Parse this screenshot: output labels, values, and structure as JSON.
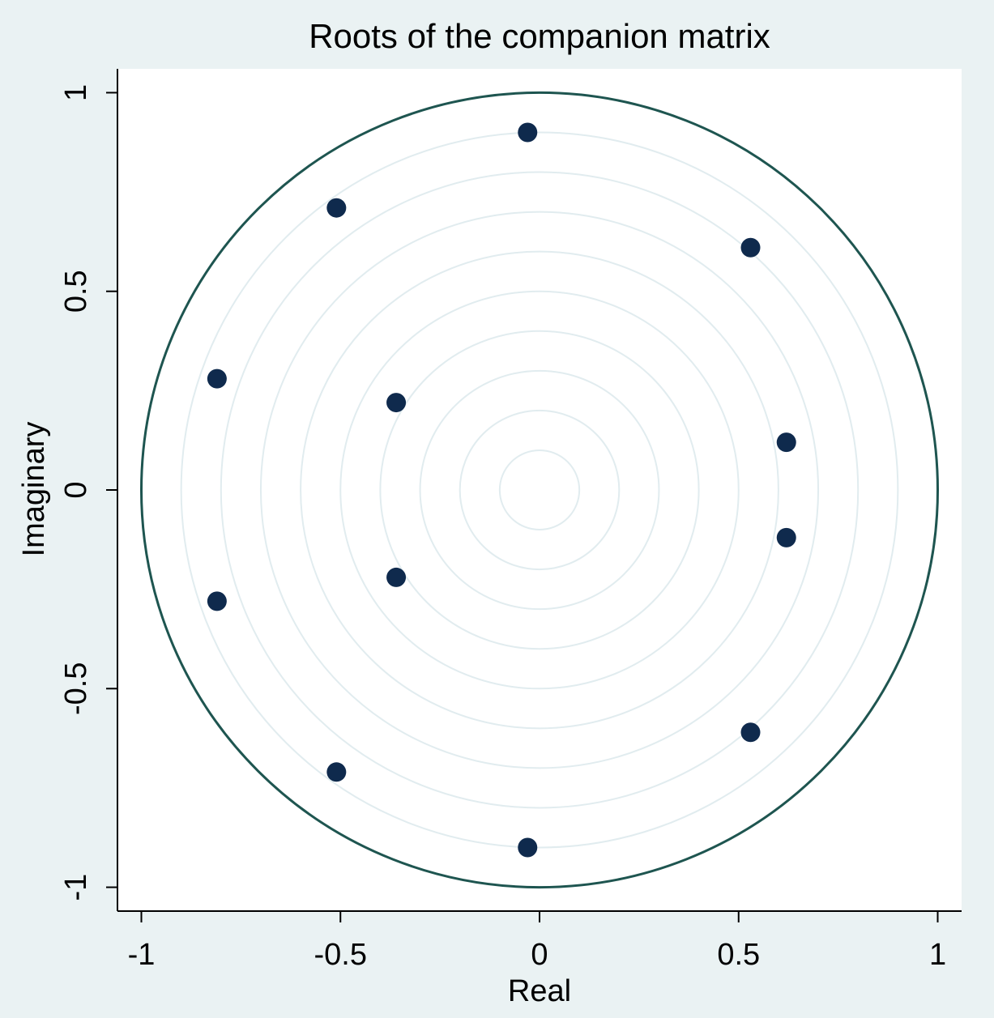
{
  "chart_data": {
    "type": "scatter",
    "title": "Roots of the companion matrix",
    "x_label": "Real",
    "y_label": "Imaginary",
    "x": [
      -0.03,
      -0.51,
      0.53,
      -0.81,
      -0.36,
      0.62,
      0.62,
      -0.36,
      -0.81,
      0.53,
      -0.51,
      -0.03
    ],
    "values": [
      0.9,
      0.71,
      0.61,
      0.28,
      0.22,
      0.12,
      -0.12,
      -0.22,
      -0.28,
      -0.61,
      -0.71,
      -0.9
    ],
    "color": "#0f2a4d",
    "xlim": [
      -1.06,
      1.06
    ],
    "ylim": [
      -1.06,
      1.06
    ],
    "xticks": [
      -1,
      -0.5,
      0,
      0.5,
      1
    ],
    "yticks": [
      -1,
      -0.5,
      0,
      0.5,
      1
    ],
    "grid": true,
    "circle_color": "#1e5550"
  }
}
